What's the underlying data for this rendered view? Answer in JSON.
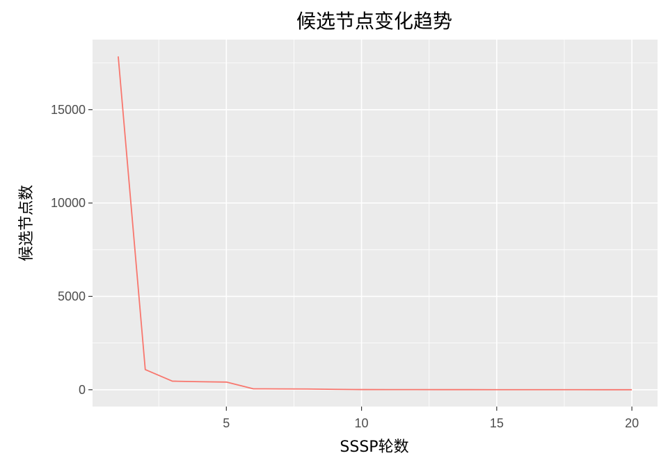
{
  "chart_data": {
    "type": "line",
    "title": "候选节点变化趋势",
    "xlabel": "SSSP轮数",
    "ylabel": "候选节点数",
    "x": [
      1,
      2,
      3,
      4,
      5,
      6,
      7,
      8,
      9,
      10,
      11,
      12,
      13,
      14,
      15,
      16,
      17,
      18,
      19,
      20
    ],
    "series": [
      {
        "values": [
          17850,
          1080,
          460,
          430,
          410,
          50,
          45,
          40,
          20,
          10,
          8,
          6,
          5,
          4,
          3,
          3,
          2,
          2,
          1,
          1
        ],
        "color": "#f8766d"
      }
    ],
    "xlim": [
      0.05,
      20.95
    ],
    "ylim": [
      -900,
      18750
    ],
    "x_ticks": [
      5,
      10,
      15,
      20
    ],
    "x_minor": [
      2.5,
      7.5,
      12.5,
      17.5
    ],
    "y_ticks": [
      0,
      5000,
      10000,
      15000
    ],
    "y_minor": [
      2500,
      7500,
      12500,
      17500
    ],
    "grid": true,
    "panel_background": "#ebebeb",
    "grid_color": "#ffffff",
    "tick_color": "#333333",
    "tick_label_color": "#4d4d4d"
  }
}
